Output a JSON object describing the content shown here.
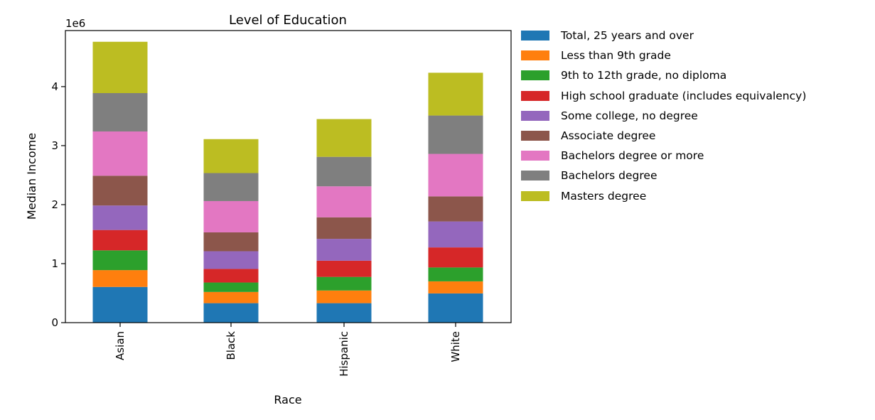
{
  "chart_data": {
    "type": "bar",
    "stacked": true,
    "title": "Level of Education",
    "xlabel": "Race",
    "ylabel": "Median Income",
    "y_offset_label": "1e6",
    "categories": [
      "Asian",
      "Black",
      "Hispanic",
      "White"
    ],
    "y_ticks": [
      0,
      1,
      2,
      3,
      4
    ],
    "ylim": [
      0,
      4950000
    ],
    "grid": false,
    "legend_position": "outside-top-right",
    "series": [
      {
        "name": "Total, 25 years and over",
        "color": "#1f77b4",
        "values": [
          605000,
          330000,
          330000,
          495000
        ]
      },
      {
        "name": "Less than 9th grade",
        "color": "#ff7f0e",
        "values": [
          285000,
          190000,
          215000,
          205000
        ]
      },
      {
        "name": "9th to 12th grade, no diploma",
        "color": "#2ca02c",
        "values": [
          335000,
          160000,
          230000,
          235000
        ]
      },
      {
        "name": "High school graduate (includes equivalency)",
        "color": "#d62728",
        "values": [
          345000,
          230000,
          275000,
          340000
        ]
      },
      {
        "name": "Some college, no degree",
        "color": "#9467bd",
        "values": [
          415000,
          300000,
          370000,
          440000
        ]
      },
      {
        "name": "Associate degree",
        "color": "#8c564b",
        "values": [
          505000,
          320000,
          365000,
          425000
        ]
      },
      {
        "name": "Bachelors degree or more",
        "color": "#e377c2",
        "values": [
          750000,
          530000,
          525000,
          720000
        ]
      },
      {
        "name": "Bachelors degree",
        "color": "#7f7f7f",
        "values": [
          650000,
          475000,
          500000,
          650000
        ]
      },
      {
        "name": "Masters degree",
        "color": "#bcbd22",
        "values": [
          870000,
          575000,
          640000,
          725000
        ]
      }
    ]
  }
}
